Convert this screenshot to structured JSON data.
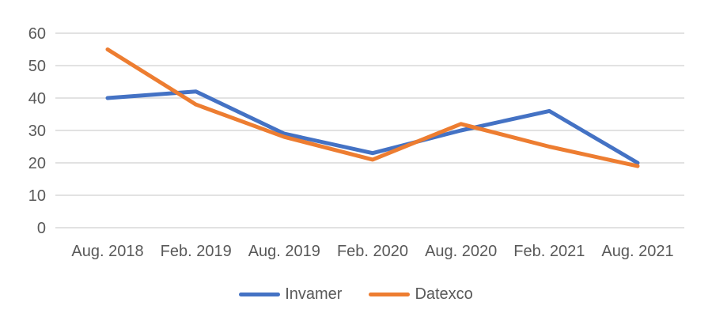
{
  "chart_data": {
    "type": "line",
    "title": "",
    "xlabel": "",
    "ylabel": "",
    "categories": [
      "Aug. 2018",
      "Feb. 2019",
      "Aug. 2019",
      "Feb. 2020",
      "Aug. 2020",
      "Feb. 2021",
      "Aug. 2021"
    ],
    "series": [
      {
        "name": "Invamer",
        "color": "#4472C4",
        "values": [
          40,
          42,
          29,
          23,
          30,
          36,
          20
        ]
      },
      {
        "name": "Datexco",
        "color": "#ED7D31",
        "values": [
          55,
          38,
          28,
          21,
          32,
          25,
          19
        ]
      }
    ],
    "ylim": [
      0,
      60
    ],
    "y_ticks": [
      0,
      10,
      20,
      30,
      40,
      50,
      60
    ],
    "grid": "horizontal-only",
    "legend_position": "bottom",
    "colors": {
      "axis_text": "#595959",
      "gridline": "#D9D9D9",
      "background": "#FFFFFF"
    },
    "line_width": 5
  }
}
